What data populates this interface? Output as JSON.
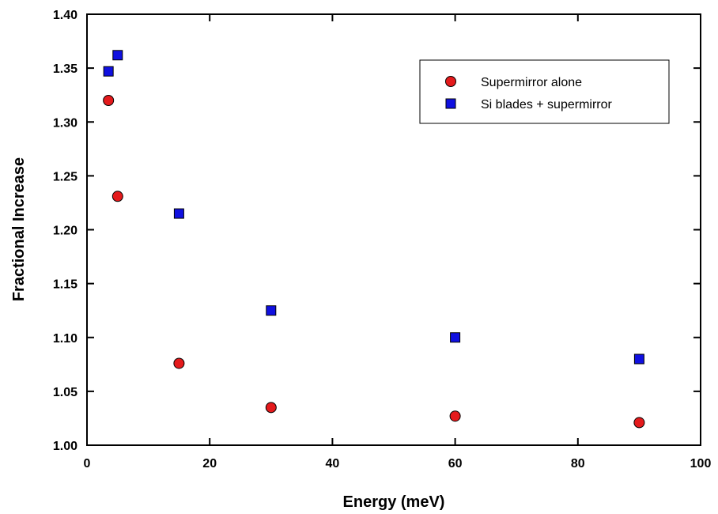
{
  "chart_data": {
    "type": "scatter",
    "xlabel": "Energy (meV)",
    "ylabel": "Fractional Increase",
    "xlim": [
      0,
      100
    ],
    "ylim": [
      1.0,
      1.4
    ],
    "x_ticks": [
      0,
      20,
      40,
      60,
      80,
      100
    ],
    "x_tick_labels": [
      "0",
      "20",
      "40",
      "60",
      "80",
      "100"
    ],
    "y_ticks": [
      1.0,
      1.05,
      1.1,
      1.15,
      1.2,
      1.25,
      1.3,
      1.35,
      1.4
    ],
    "y_tick_labels": [
      "1.00",
      "1.05",
      "1.10",
      "1.15",
      "1.20",
      "1.25",
      "1.30",
      "1.35",
      "1.40"
    ],
    "grid": false,
    "legend_position": "top-right",
    "series": [
      {
        "name": "Supermirror alone",
        "marker": "circle",
        "color": "#e41a1c",
        "x": [
          3.5,
          5,
          15,
          30,
          60,
          90
        ],
        "y": [
          1.32,
          1.231,
          1.076,
          1.035,
          1.027,
          1.021
        ]
      },
      {
        "name": "Si blades + supermirror",
        "marker": "square",
        "color": "#1010e0",
        "x": [
          3.5,
          5,
          15,
          30,
          60,
          90
        ],
        "y": [
          1.347,
          1.362,
          1.215,
          1.125,
          1.1,
          1.08
        ]
      }
    ]
  }
}
